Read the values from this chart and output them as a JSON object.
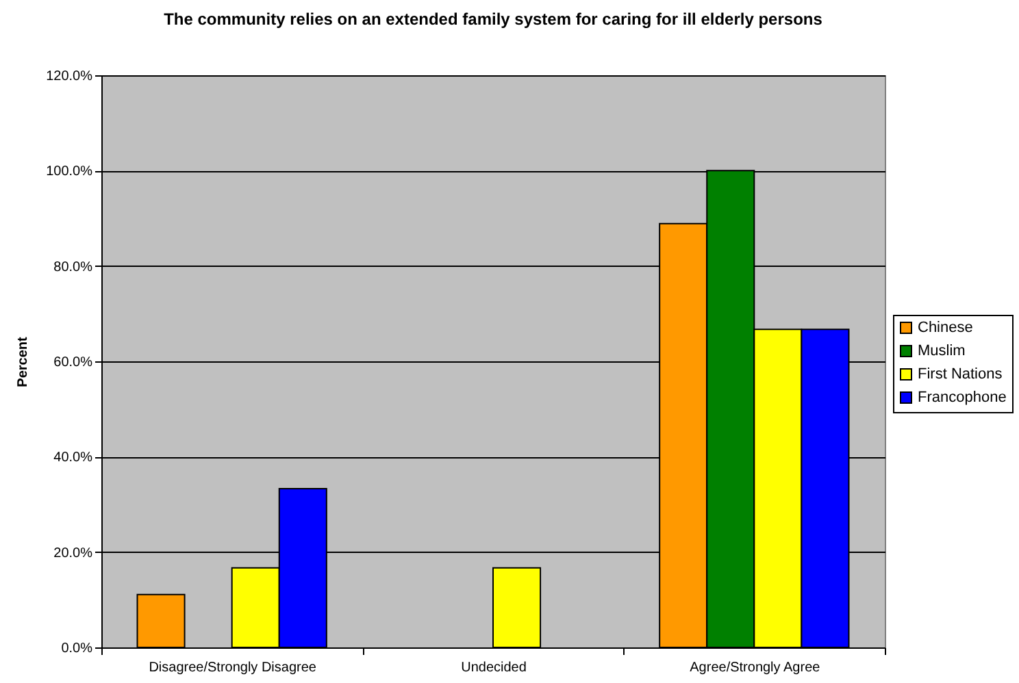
{
  "chart_data": {
    "type": "bar",
    "title": "The community relies on an extended family system for caring for ill elderly persons",
    "ylabel": "Percent",
    "categories": [
      "Disagree/Strongly Disagree",
      "Undecided",
      "Agree/Strongly Agree"
    ],
    "series": [
      {
        "name": "Chinese",
        "color": "#ff9900",
        "values": [
          11.1,
          null,
          88.9
        ]
      },
      {
        "name": "Muslim",
        "color": "#008000",
        "values": [
          null,
          null,
          100
        ]
      },
      {
        "name": "First Nations",
        "color": "#ffff00",
        "values": [
          16.7,
          16.7,
          66.7
        ]
      },
      {
        "name": "Francophone",
        "color": "#0000ff",
        "values": [
          33.3,
          null,
          66.7
        ]
      }
    ],
    "ylim": [
      0,
      120
    ],
    "yticks": [
      {
        "value": 0,
        "label": "0.0%"
      },
      {
        "value": 20,
        "label": "20.0%"
      },
      {
        "value": 40,
        "label": "40.0%"
      },
      {
        "value": 60,
        "label": "60.0%"
      },
      {
        "value": 80,
        "label": "80.0%"
      },
      {
        "value": 100,
        "label": "100.0%"
      },
      {
        "value": 120,
        "label": "120.0%"
      }
    ],
    "grid": "y",
    "legend": "right"
  }
}
